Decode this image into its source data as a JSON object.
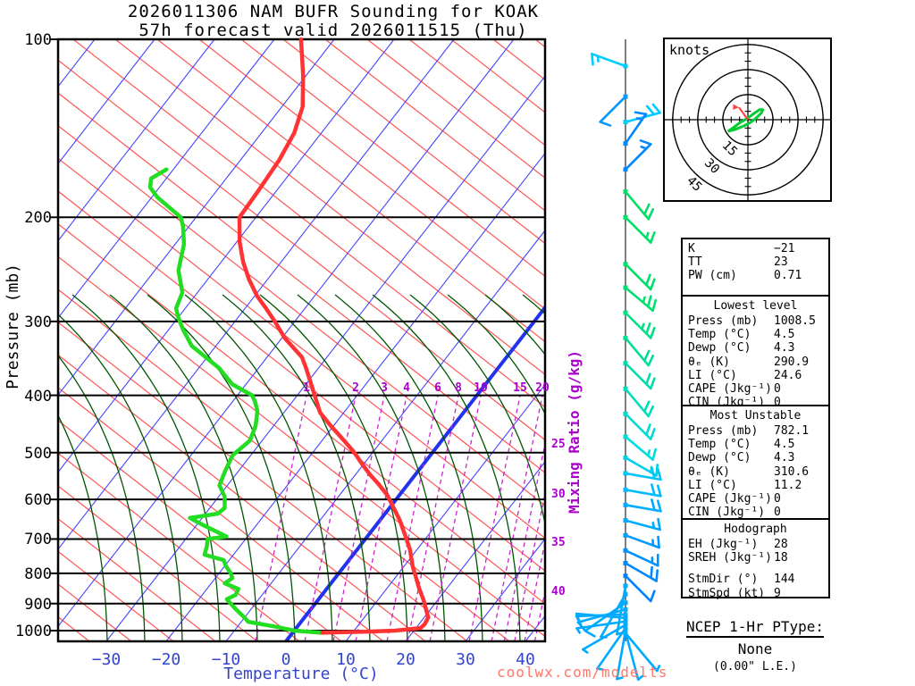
{
  "title": {
    "line1": "2026011306 NAM BUFR Sounding for KOAK",
    "line2": "57h forecast valid 2026011515 (Thu)"
  },
  "watermark": "coolwx.com/modelts",
  "axes": {
    "pressure_label": "Pressure (mb)",
    "pressure_ticks": [
      "100",
      "200",
      "300",
      "400",
      "500",
      "600",
      "700",
      "800",
      "900",
      "1000"
    ],
    "temp_label": "Temperature (°C)",
    "temp_ticks": [
      "−30",
      "−20",
      "−10",
      "0",
      "10",
      "20",
      "30",
      "40"
    ],
    "mixing_label": "Mixing Ratio (g/kg)",
    "mixing_ratio_labels": [
      "1",
      "2",
      "3",
      "4",
      "6",
      "8",
      "10",
      "15",
      "20"
    ],
    "mixing_ratio_right_labels": [
      "25",
      "30",
      "35",
      "40"
    ]
  },
  "hodograph_box": {
    "units_label": "knots",
    "ring_labels": [
      "15",
      "30",
      "45"
    ],
    "rings_kt": [
      15,
      30,
      45
    ]
  },
  "stats_panels": [
    {
      "rows": [
        [
          "K",
          "−21"
        ],
        [
          "TT",
          "23"
        ],
        [
          "PW (cm)",
          "0.71"
        ]
      ]
    },
    {
      "title": "Lowest level",
      "rows": [
        [
          "Press (mb)",
          "1008.5"
        ],
        [
          "Temp (°C)",
          "4.5"
        ],
        [
          "Dewp (°C)",
          "4.3"
        ],
        [
          "θₑ (K)",
          "290.9"
        ],
        [
          "LI (°C)",
          "24.6"
        ],
        [
          "CAPE (Jkg⁻¹)",
          "0"
        ],
        [
          "CIN (Jkg⁻¹)",
          "0"
        ]
      ]
    },
    {
      "title": "Most Unstable",
      "rows": [
        [
          "Press (mb)",
          "782.1"
        ],
        [
          "Temp (°C)",
          "4.5"
        ],
        [
          "Dewp (°C)",
          "4.3"
        ],
        [
          "θₑ (K)",
          "310.6"
        ],
        [
          "LI (°C)",
          "11.2"
        ],
        [
          "CAPE (Jkg⁻¹)",
          "0"
        ],
        [
          "CIN (Jkg⁻¹)",
          "0"
        ]
      ]
    },
    {
      "title": "Hodograph",
      "rows": [
        [
          "EH (Jkg⁻¹)",
          "28"
        ],
        [
          "SREH (Jkg⁻¹)",
          "18"
        ],
        [
          "",
          ""
        ],
        [
          "StmDir (°)",
          "144"
        ],
        [
          "StmSpd (kt)",
          "9"
        ]
      ]
    }
  ],
  "ptype": {
    "title": "NCEP 1-Hr PType:",
    "value": "None",
    "detail": "(0.00\" L.E.)"
  },
  "chart_data": {
    "type": "skewt-log-p",
    "title": "2026011306 NAM BUFR Sounding for KOAK, 57h forecast valid 2026011515 (Thu)",
    "pressure_axis_mb": [
      100,
      200,
      300,
      400,
      500,
      600,
      700,
      800,
      900,
      1000
    ],
    "temp_axis_c": [
      -30,
      -20,
      -10,
      0,
      10,
      20,
      30,
      40
    ],
    "mixing_ratio_lines_gkg": [
      1,
      2,
      3,
      4,
      6,
      8,
      10,
      15,
      20,
      25,
      30,
      35,
      40
    ],
    "temperature_profile_p_t": [
      [
        100,
        -76
      ],
      [
        115,
        -71
      ],
      [
        130,
        -67
      ],
      [
        144,
        -65
      ],
      [
        160,
        -64
      ],
      [
        180,
        -63.5
      ],
      [
        200,
        -63.2
      ],
      [
        220,
        -60
      ],
      [
        238,
        -56.8
      ],
      [
        255,
        -53.5
      ],
      [
        272,
        -50
      ],
      [
        285,
        -47
      ],
      [
        300,
        -43.8
      ],
      [
        320,
        -40
      ],
      [
        345,
        -34.6
      ],
      [
        360,
        -32.5
      ],
      [
        383,
        -29.6
      ],
      [
        405,
        -27
      ],
      [
        428,
        -24.4
      ],
      [
        450,
        -21
      ],
      [
        477,
        -16.8
      ],
      [
        500,
        -13.5
      ],
      [
        523,
        -10.7
      ],
      [
        545,
        -8
      ],
      [
        565,
        -5.4
      ],
      [
        590,
        -2.5
      ],
      [
        621,
        0.3
      ],
      [
        650,
        2.8
      ],
      [
        690,
        5.7
      ],
      [
        730,
        8.4
      ],
      [
        777,
        10.9
      ],
      [
        810,
        12.8
      ],
      [
        848,
        14.9
      ],
      [
        890,
        17.3
      ],
      [
        925,
        19
      ],
      [
        950,
        20.2
      ],
      [
        975,
        20.5
      ],
      [
        990,
        20.3
      ],
      [
        1000,
        16.4
      ],
      [
        1004,
        12
      ],
      [
        1006,
        8
      ],
      [
        1008.5,
        4.5
      ]
    ],
    "dewpoint_profile_p_td": [
      [
        166,
        -81.6
      ],
      [
        172,
        -83
      ],
      [
        178,
        -82
      ],
      [
        185,
        -79.5
      ],
      [
        200,
        -73
      ],
      [
        207,
        -71.5
      ],
      [
        222,
        -69
      ],
      [
        246,
        -66.5
      ],
      [
        268,
        -63
      ],
      [
        285,
        -62
      ],
      [
        295,
        -60.5
      ],
      [
        310,
        -58
      ],
      [
        330,
        -54.5
      ],
      [
        360,
        -47
      ],
      [
        383,
        -42.8
      ],
      [
        400,
        -38
      ],
      [
        410,
        -36.7
      ],
      [
        425,
        -35.1
      ],
      [
        450,
        -33.5
      ],
      [
        477,
        -32.5
      ],
      [
        505,
        -33.5
      ],
      [
        537,
        -32.7
      ],
      [
        568,
        -31.8
      ],
      [
        593,
        -29.5
      ],
      [
        620,
        -28
      ],
      [
        634,
        -28.4
      ],
      [
        645,
        -32.5
      ],
      [
        665,
        -29
      ],
      [
        693,
        -24
      ],
      [
        700,
        -26.8
      ],
      [
        720,
        -26
      ],
      [
        744,
        -25.3
      ],
      [
        760,
        -21.4
      ],
      [
        777,
        -20.3
      ],
      [
        800,
        -18.5
      ],
      [
        815,
        -17.6
      ],
      [
        832,
        -18.2
      ],
      [
        850,
        -15.2
      ],
      [
        870,
        -14.9
      ],
      [
        885,
        -15.8
      ],
      [
        920,
        -13
      ],
      [
        950,
        -10.5
      ],
      [
        966,
        -9.3
      ],
      [
        985,
        -4
      ],
      [
        1000,
        -0.5
      ],
      [
        1008.5,
        4.3
      ]
    ],
    "wind_barbs": [
      {
        "p": 111,
        "dir": 290,
        "kt": 15,
        "color": "#00ccff"
      },
      {
        "p": 125,
        "dir": 225,
        "kt": 10,
        "color": "#0099ff"
      },
      {
        "p": 138,
        "dir": 75,
        "kt": 20,
        "color": "#00ccff"
      },
      {
        "p": 150,
        "dir": 35,
        "kt": 15,
        "color": "#0088ff"
      },
      {
        "p": 166,
        "dir": 45,
        "kt": 15,
        "color": "#0088ff"
      },
      {
        "p": 181,
        "dir": 140,
        "kt": 20,
        "color": "#00e066"
      },
      {
        "p": 200,
        "dir": 135,
        "kt": 15,
        "color": "#00e066"
      },
      {
        "p": 240,
        "dir": 135,
        "kt": 20,
        "color": "#00e066"
      },
      {
        "p": 263,
        "dir": 130,
        "kt": 25,
        "color": "#00e070"
      },
      {
        "p": 290,
        "dir": 135,
        "kt": 25,
        "color": "#00e087"
      },
      {
        "p": 320,
        "dir": 140,
        "kt": 20,
        "color": "#00dd99"
      },
      {
        "p": 353,
        "dir": 135,
        "kt": 20,
        "color": "#00ddaa"
      },
      {
        "p": 390,
        "dir": 140,
        "kt": 20,
        "color": "#00ddbb"
      },
      {
        "p": 430,
        "dir": 135,
        "kt": 20,
        "color": "#00ddcc"
      },
      {
        "p": 470,
        "dir": 130,
        "kt": 15,
        "color": "#00dddd"
      },
      {
        "p": 510,
        "dir": 120,
        "kt": 15,
        "color": "#00d0e8"
      },
      {
        "p": 542,
        "dir": 100,
        "kt": 20,
        "color": "#00c4f4"
      },
      {
        "p": 578,
        "dir": 100,
        "kt": 20,
        "color": "#00bbff"
      },
      {
        "p": 613,
        "dir": 100,
        "kt": 20,
        "color": "#00aaff"
      },
      {
        "p": 651,
        "dir": 105,
        "kt": 15,
        "color": "#00aaff"
      },
      {
        "p": 690,
        "dir": 110,
        "kt": 15,
        "color": "#0099ff"
      },
      {
        "p": 732,
        "dir": 115,
        "kt": 15,
        "color": "#0090ff"
      },
      {
        "p": 769,
        "dir": 120,
        "kt": 20,
        "color": "#0088ff"
      },
      {
        "p": 808,
        "dir": 135,
        "kt": 10,
        "color": "#0080ff"
      },
      {
        "p": 840,
        "dir": 190,
        "kt": 5,
        "color": "#00aaff"
      },
      {
        "p": 868,
        "dir": 210,
        "kt": 8,
        "color": "#00aaff"
      },
      {
        "p": 897,
        "dir": 235,
        "kt": 10,
        "color": "#00aaff"
      },
      {
        "p": 921,
        "dir": 255,
        "kt": 10,
        "color": "#00aaff"
      },
      {
        "p": 939,
        "dir": 268,
        "kt": 10,
        "color": "#00aaff"
      },
      {
        "p": 952,
        "dir": 275,
        "kt": 10,
        "color": "#00aaff"
      },
      {
        "p": 965,
        "dir": 262,
        "kt": 8,
        "color": "#00aaff"
      },
      {
        "p": 978,
        "dir": 240,
        "kt": 8,
        "color": "#00aaff"
      },
      {
        "p": 991,
        "dir": 215,
        "kt": 8,
        "color": "#00aaff"
      },
      {
        "p": 1000,
        "dir": 190,
        "kt": 8,
        "color": "#00aaff"
      },
      {
        "p": 1006,
        "dir": 165,
        "kt": 8,
        "color": "#00aaff"
      },
      {
        "p": 1010,
        "dir": 140,
        "kt": 8,
        "color": "#00aaff"
      }
    ],
    "hodograph_trace_kt": [
      [
        -12,
        -7
      ],
      [
        -8,
        -6
      ],
      [
        -3,
        -4
      ],
      [
        1,
        -2
      ],
      [
        5,
        1
      ],
      [
        8,
        4
      ],
      [
        9,
        6
      ],
      [
        7,
        6
      ],
      [
        4,
        4
      ],
      [
        0,
        1
      ],
      [
        -5,
        -2
      ],
      [
        -9,
        -5
      ],
      [
        -12,
        -7
      ]
    ],
    "storm_motion": {
      "dir_deg": 144,
      "speed_kt": 9
    },
    "colors": {
      "temperature_trace": "#ff3333",
      "dewpoint_trace": "#22dd22",
      "isotherm": "#4444ff",
      "zero_isotherm": "#2233ee",
      "dry_adiabat": "#ff5555",
      "moist_adiabat": "#005500",
      "mixing_ratio": "#cc22cc",
      "axis_blue": "#3344cc",
      "magenta_label": "#aa00cc",
      "watermark": "#ff7766",
      "hodo_trace": "#00cc33",
      "storm_vector": "#ff4444"
    }
  }
}
